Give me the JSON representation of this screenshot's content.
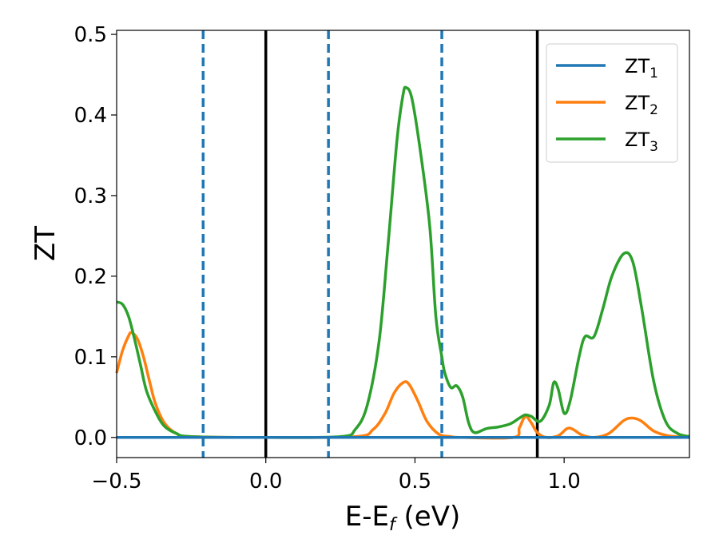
{
  "chart_data": {
    "type": "line",
    "xlabel_main": "E-E",
    "xlabel_sub": "f",
    "xlabel_unit": " (eV)",
    "ylabel": "ZT",
    "xlim": [
      -0.5,
      1.42
    ],
    "ylim": [
      -0.025,
      0.505
    ],
    "x_ticks": [
      -0.5,
      0.0,
      0.5,
      1.0
    ],
    "x_tick_labels": [
      "−0.5",
      "0.0",
      "0.5",
      "1.0"
    ],
    "y_ticks": [
      0.0,
      0.1,
      0.2,
      0.3,
      0.4,
      0.5
    ],
    "y_tick_labels": [
      "0.0",
      "0.1",
      "0.2",
      "0.3",
      "0.4",
      "0.5"
    ],
    "vlines_solid": [
      0.0,
      0.91
    ],
    "vlines_dashed": [
      -0.21,
      0.21,
      0.59
    ],
    "legend_position": "upper right",
    "series": [
      {
        "name": "ZT",
        "subscript": "1",
        "color": "#1f77b4",
        "points": [
          [
            -0.5,
            0.0
          ],
          [
            1.42,
            0.0
          ]
        ]
      },
      {
        "name": "ZT",
        "subscript": "2",
        "color": "#ff7f0e",
        "points": [
          [
            -0.5,
            0.08
          ],
          [
            -0.48,
            0.108
          ],
          [
            -0.46,
            0.126
          ],
          [
            -0.45,
            0.13
          ],
          [
            -0.43,
            0.122
          ],
          [
            -0.41,
            0.1
          ],
          [
            -0.39,
            0.07
          ],
          [
            -0.37,
            0.042
          ],
          [
            -0.34,
            0.018
          ],
          [
            -0.3,
            0.005
          ],
          [
            -0.25,
            0.001
          ],
          [
            0.0,
            0.0
          ],
          [
            0.3,
            0.001
          ],
          [
            0.36,
            0.01
          ],
          [
            0.4,
            0.03
          ],
          [
            0.43,
            0.055
          ],
          [
            0.46,
            0.068
          ],
          [
            0.48,
            0.066
          ],
          [
            0.51,
            0.045
          ],
          [
            0.54,
            0.02
          ],
          [
            0.58,
            0.004
          ],
          [
            0.62,
            0.001
          ],
          [
            0.66,
            0.0
          ],
          [
            0.83,
            0.0
          ],
          [
            0.85,
            0.012
          ],
          [
            0.87,
            0.026
          ],
          [
            0.89,
            0.018
          ],
          [
            0.91,
            0.006
          ],
          [
            0.94,
            0.0
          ],
          [
            0.98,
            0.002
          ],
          [
            1.01,
            0.011
          ],
          [
            1.03,
            0.01
          ],
          [
            1.06,
            0.003
          ],
          [
            1.1,
            0.0
          ],
          [
            1.15,
            0.005
          ],
          [
            1.2,
            0.021
          ],
          [
            1.23,
            0.024
          ],
          [
            1.26,
            0.02
          ],
          [
            1.3,
            0.008
          ],
          [
            1.35,
            0.002
          ],
          [
            1.42,
            0.0
          ]
        ]
      },
      {
        "name": "ZT",
        "subscript": "3",
        "color": "#2ca02c",
        "points": [
          [
            -0.5,
            0.168
          ],
          [
            -0.48,
            0.165
          ],
          [
            -0.46,
            0.15
          ],
          [
            -0.44,
            0.122
          ],
          [
            -0.42,
            0.09
          ],
          [
            -0.4,
            0.058
          ],
          [
            -0.37,
            0.032
          ],
          [
            -0.34,
            0.014
          ],
          [
            -0.3,
            0.005
          ],
          [
            -0.25,
            0.001
          ],
          [
            0.0,
            0.0
          ],
          [
            0.25,
            0.001
          ],
          [
            0.3,
            0.01
          ],
          [
            0.34,
            0.04
          ],
          [
            0.38,
            0.12
          ],
          [
            0.41,
            0.24
          ],
          [
            0.44,
            0.37
          ],
          [
            0.46,
            0.425
          ],
          [
            0.47,
            0.434
          ],
          [
            0.49,
            0.42
          ],
          [
            0.52,
            0.35
          ],
          [
            0.55,
            0.26
          ],
          [
            0.57,
            0.15
          ],
          [
            0.59,
            0.1
          ],
          [
            0.6,
            0.08
          ],
          [
            0.62,
            0.062
          ],
          [
            0.64,
            0.064
          ],
          [
            0.66,
            0.05
          ],
          [
            0.68,
            0.018
          ],
          [
            0.7,
            0.006
          ],
          [
            0.74,
            0.011
          ],
          [
            0.78,
            0.013
          ],
          [
            0.82,
            0.017
          ],
          [
            0.85,
            0.024
          ],
          [
            0.87,
            0.028
          ],
          [
            0.89,
            0.026
          ],
          [
            0.92,
            0.02
          ],
          [
            0.95,
            0.04
          ],
          [
            0.965,
            0.068
          ],
          [
            0.98,
            0.06
          ],
          [
            1.0,
            0.03
          ],
          [
            1.02,
            0.045
          ],
          [
            1.05,
            0.1
          ],
          [
            1.07,
            0.125
          ],
          [
            1.1,
            0.125
          ],
          [
            1.13,
            0.16
          ],
          [
            1.16,
            0.2
          ],
          [
            1.2,
            0.228
          ],
          [
            1.23,
            0.218
          ],
          [
            1.26,
            0.16
          ],
          [
            1.3,
            0.07
          ],
          [
            1.34,
            0.02
          ],
          [
            1.38,
            0.005
          ],
          [
            1.42,
            0.001
          ]
        ]
      }
    ]
  }
}
